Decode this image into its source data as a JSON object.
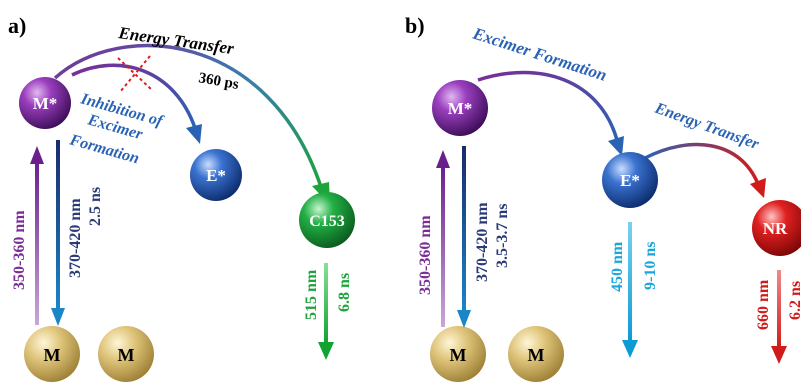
{
  "panel_a": {
    "label": "a)",
    "nodes": {
      "monomer_excited": "M*",
      "excimer": "E*",
      "acceptor": "C153",
      "ground_1": "M",
      "ground_2": "M"
    },
    "process_energy_transfer": "Energy Transfer",
    "energy_transfer_time": "360 ps",
    "inhibition_line1": "Inhibition of",
    "inhibition_line2": "Excimer",
    "inhibition_line3": "Formation",
    "excitation": "350-360 nm",
    "emission": "370-420 nm",
    "emission_lifetime": "2.5 ns",
    "acceptor_emission": "515 nm",
    "acceptor_lifetime": "6.8 ns"
  },
  "panel_b": {
    "label": "b)",
    "nodes": {
      "monomer_excited": "M*",
      "excimer": "E*",
      "acceptor": "NR",
      "ground_1": "M",
      "ground_2": "M"
    },
    "process_excimer_formation": "Excimer Formation",
    "process_energy_transfer": "Energy Transfer",
    "excitation": "350-360 nm",
    "emission": "370-420 nm",
    "emission_lifetime": "3.5-3.7 ns",
    "excimer_emission": "450 nm",
    "excimer_lifetime": "9-10 ns",
    "acceptor_emission": "660 nm",
    "acceptor_lifetime": "6.2 ns"
  },
  "colors": {
    "purple": "#7a2d96",
    "blue": "#2a63b5",
    "green": "#1da43a",
    "red": "#d11b1b",
    "cyan": "#18a6dc",
    "gold": "#d8bf72",
    "navy": "#2a3a78"
  }
}
